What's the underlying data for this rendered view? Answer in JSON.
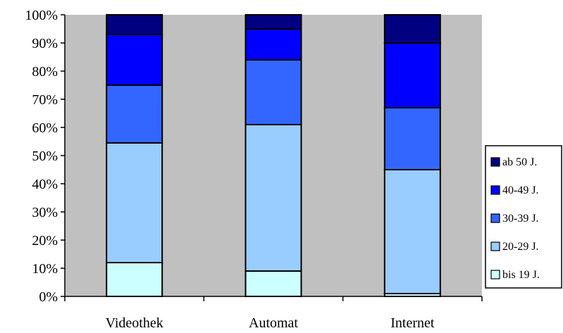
{
  "chart_data": {
    "type": "bar",
    "stacked": true,
    "percent": true,
    "categories": [
      "Videothek",
      "Automat",
      "Internet"
    ],
    "series": [
      {
        "name": "bis 19 J.",
        "values": [
          12,
          9,
          1
        ],
        "color": "#CCFFFF"
      },
      {
        "name": "20-29 J.",
        "values": [
          42.5,
          52,
          44
        ],
        "color": "#99CCFF"
      },
      {
        "name": "30-39 J.",
        "values": [
          20.5,
          23,
          22
        ],
        "color": "#3366FF"
      },
      {
        "name": "40-49 J.",
        "values": [
          18,
          11,
          23
        ],
        "color": "#0000FF"
      },
      {
        "name": "ab 50 J.",
        "values": [
          7,
          5,
          10
        ],
        "color": "#000080"
      }
    ],
    "y_ticks": [
      "0%",
      "10%",
      "20%",
      "30%",
      "40%",
      "50%",
      "60%",
      "70%",
      "80%",
      "90%",
      "100%"
    ],
    "ylim": [
      0,
      100
    ],
    "grid": false,
    "plot_background": "#C0C0C0",
    "legend_position": "right",
    "legend_order": [
      "ab 50 J.",
      "40-49 J.",
      "30-39 J.",
      "20-29 J.",
      "bis 19 J."
    ]
  }
}
